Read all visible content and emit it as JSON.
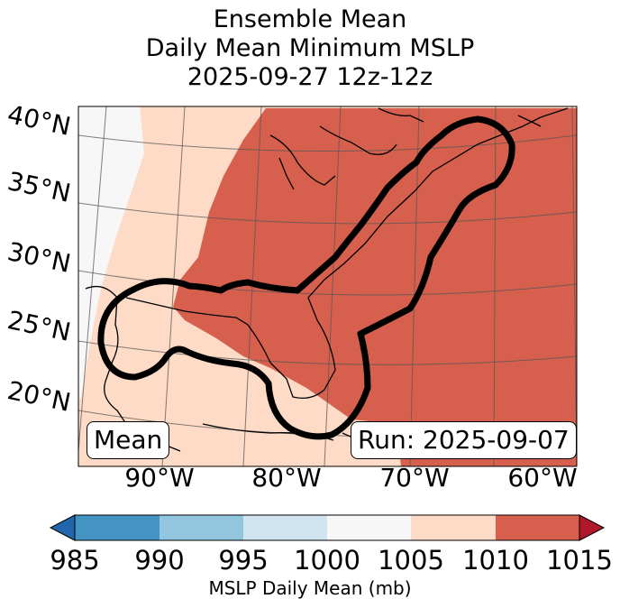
{
  "title": {
    "line1": "Ensemble Mean",
    "line2": "Daily Mean Minimum MSLP",
    "line3": "2025-09-27 12z-12z"
  },
  "lat_labels": [
    "40°N",
    "35°N",
    "30°N",
    "25°N",
    "20°N"
  ],
  "lon_labels": [
    "90°W",
    "80°W",
    "70°W",
    "60°W"
  ],
  "box_labels": {
    "left": "Mean",
    "right": "Run: 2025-09-07"
  },
  "colorbar": {
    "ticks": [
      "985",
      "990",
      "995",
      "1000",
      "1005",
      "1010",
      "1015"
    ],
    "label": "MSLP Daily Mean (mb)",
    "bins": [
      {
        "range": "985-990",
        "color": "#4393c3"
      },
      {
        "range": "990-995",
        "color": "#92c5de"
      },
      {
        "range": "995-1000",
        "color": "#d1e5f0"
      },
      {
        "range": "1000-1005",
        "color": "#f7f7f7"
      },
      {
        "range": "1005-1010",
        "color": "#fddbc7"
      },
      {
        "range": "1010-1015",
        "color": "#d6604d"
      }
    ],
    "under_color": "#2166ac",
    "over_color": "#b2182b"
  }
}
